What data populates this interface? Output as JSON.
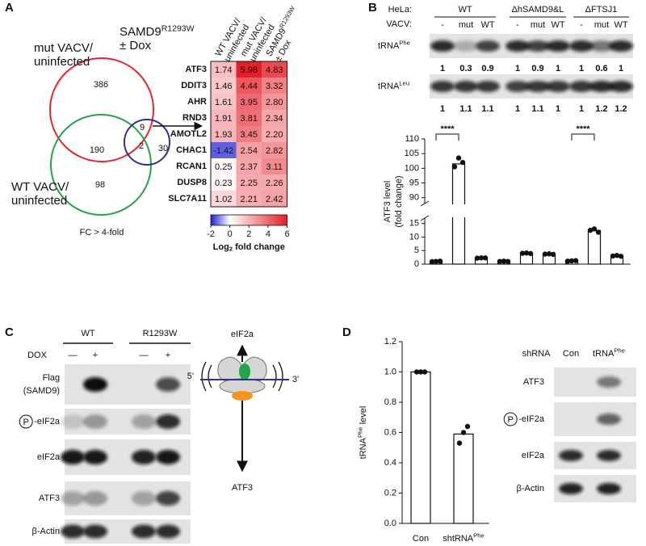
{
  "panel_labels": [
    "A",
    "B",
    "C",
    "D"
  ],
  "venn": {
    "sets": [
      {
        "text": "mut VACV/",
        "text2": "uninfected",
        "color": "#e3262d"
      },
      {
        "text": "WT VACV/",
        "text2": "uninfected",
        "color": "#27a048"
      },
      {
        "text": "SAMD9",
        "sup": "R1293W",
        "text2": "± Dox",
        "color": "#2e3192"
      }
    ],
    "counts": [
      386,
      190,
      98,
      9,
      2,
      30
    ],
    "caption": "FC > 4-fold"
  },
  "chart_data": [
    {
      "type": "heatmap",
      "columns": [
        {
          "text": "WT VACV/",
          "text2": "uninfected",
          "color": "#27a048"
        },
        {
          "text": "mut VACV/",
          "text2": "uninfected",
          "color": "#e3262d"
        },
        {
          "text": "SAMD9",
          "sup": "R1293W",
          "text2": "± Dox",
          "color": "#2e3192"
        }
      ],
      "rows": [
        "ATF3",
        "DDIT3",
        "AHR",
        "RND3",
        "AMOTL2",
        "CHAC1",
        "RCAN1",
        "DUSP8",
        "SLC7A11"
      ],
      "values": [
        [
          1.74,
          5.98,
          4.83
        ],
        [
          1.46,
          4.44,
          3.32
        ],
        [
          1.61,
          3.95,
          2.8
        ],
        [
          1.91,
          3.81,
          2.34
        ],
        [
          1.93,
          3.45,
          2.2
        ],
        [
          -1.42,
          2.54,
          2.82
        ],
        [
          0.25,
          2.37,
          3.11
        ],
        [
          0.23,
          2.25,
          2.26
        ],
        [
          1.02,
          2.21,
          2.42
        ]
      ],
      "value_labels": [
        [
          "1.74",
          "5.98",
          "4.83"
        ],
        [
          "1.46",
          "4.44",
          "3.32"
        ],
        [
          "1.61",
          "3.95",
          "2.80"
        ],
        [
          "1.91",
          "3.81",
          "2.34"
        ],
        [
          "1.93",
          "3.45",
          "2.20"
        ],
        [
          "-1.42",
          "2.54",
          "2.82"
        ],
        [
          "0.25",
          "2.37",
          "3.11"
        ],
        [
          "0.23",
          "2.25",
          "2.26"
        ],
        [
          "1.02",
          "2.21",
          "2.42"
        ]
      ],
      "zlim": [
        -2,
        6
      ],
      "center": 0,
      "zticks": [
        -2,
        0,
        2,
        4,
        6
      ],
      "colors": [
        "#1f1fd1",
        "#ffffff",
        "#e41e26"
      ],
      "colorbar_label": {
        "text": "Log",
        "sub": "2",
        "after": " fold change"
      }
    },
    {
      "type": "bar",
      "ylabel": {
        "text": "ATF3 level",
        "text2": "(fold change)"
      },
      "values": [
        1.0,
        101.5,
        2.3,
        1.0,
        4.0,
        3.7,
        1.2,
        12.4,
        3.0
      ],
      "points": [
        [
          0.9,
          1.0,
          1.1
        ],
        [
          100.5,
          103.5,
          102
        ],
        [
          2.2,
          2.3,
          2.3
        ],
        [
          1.0,
          1.1,
          1.0
        ],
        [
          4.0,
          4.1,
          3.9
        ],
        [
          3.7,
          3.8,
          3.6
        ],
        [
          1.1,
          1.2,
          1.3
        ],
        [
          12.5,
          13,
          11.8
        ],
        [
          3.0,
          3.2,
          2.9
        ]
      ],
      "ylim": [
        0,
        110
      ],
      "axis_break": [
        17,
        88
      ],
      "yticks": [
        0,
        5,
        10,
        15,
        90,
        95,
        100,
        105,
        110
      ],
      "annotations": [
        {
          "text": "****",
          "from": 0,
          "to": 1
        },
        {
          "text": "****",
          "from": 6,
          "to": 7
        }
      ],
      "color": "#ffffff"
    },
    {
      "type": "bar",
      "ylabel": {
        "text": "tRNA",
        "sup": "Phe",
        "after": " level"
      },
      "categories": [
        "Con",
        {
          "text": "shtRNA",
          "sup": "Phe"
        }
      ],
      "values": [
        1.0,
        0.59
      ],
      "points": [
        [
          1.0,
          1.0,
          1.0
        ],
        [
          0.53,
          0.6,
          0.64
        ]
      ],
      "ylim": [
        0,
        1.2
      ],
      "yticks": [
        {
          "value": 0,
          "label": "0.0"
        },
        0.2,
        0.4,
        0.6,
        0.8,
        {
          "value": 1.0,
          "label": "1.0"
        },
        1.2
      ],
      "color": "#ffffff"
    }
  ],
  "blot_B": {
    "cell_line_label": "HeLa:",
    "groups": [
      "WT",
      "ΔhSAMD9&L",
      "ΔFTSJ1"
    ],
    "virus_label": "VACV:",
    "lanes": [
      "-",
      "mut",
      "WT",
      "-",
      "mut",
      "WT",
      "-",
      "mut",
      "WT"
    ],
    "rows": [
      {
        "label": {
          "text": "tRNA",
          "sup": "Phe"
        },
        "quant": [
          1,
          0.3,
          0.9,
          1,
          0.9,
          1,
          1,
          0.6,
          1
        ]
      },
      {
        "label": {
          "text": "tRNA",
          "sup": "Leu"
        },
        "quant": [
          1,
          1.1,
          1.1,
          1,
          1.1,
          1,
          1,
          1.2,
          1.2
        ]
      }
    ]
  },
  "blot_C": {
    "groups": [
      "WT",
      "R1293W"
    ],
    "treatment_label": "DOX",
    "lanes": [
      "—",
      "+",
      "—",
      "+"
    ],
    "rows": [
      {
        "text": "Flag",
        "text2": "(SAMD9)"
      },
      {
        "circled": "P",
        "text": "-eIF2a"
      },
      {
        "text": "eIF2a"
      },
      {
        "text": "ATF3"
      },
      {
        "text": "β-Actin"
      }
    ]
  },
  "diagram_C": {
    "top": "eIF2a",
    "left": "5'",
    "right": "3'",
    "bottom": "ATF3"
  },
  "blot_D": {
    "treatment_label": "shRNA",
    "lanes": [
      "Con",
      {
        "text": "tRNA",
        "sup": "Phe"
      }
    ],
    "rows": [
      {
        "text": "ATF3"
      },
      {
        "circled": "P",
        "text": "-eIF2a"
      },
      {
        "text": "eIF2a"
      },
      {
        "text": "β-Actin"
      }
    ]
  }
}
